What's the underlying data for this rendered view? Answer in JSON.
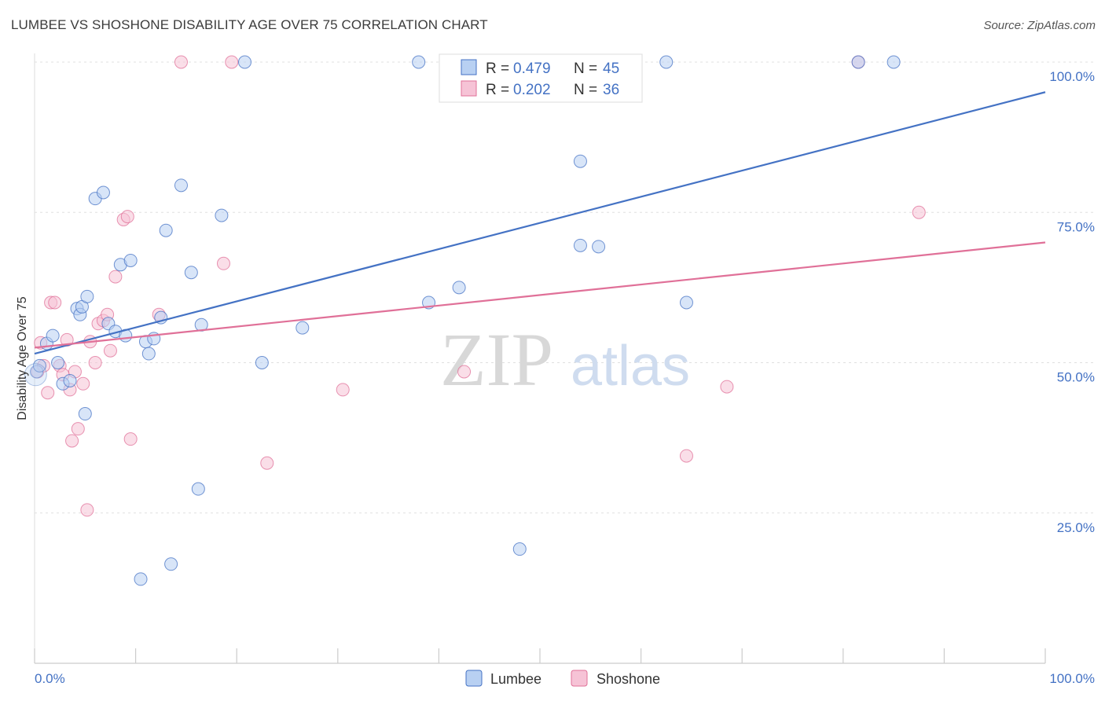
{
  "header": {
    "title": "LUMBEE VS SHOSHONE DISABILITY AGE OVER 75 CORRELATION CHART",
    "source": "Source: ZipAtlas.com"
  },
  "watermark": {
    "zip": "ZIP",
    "atlas": "atlas"
  },
  "legend": {
    "r_label": "R = ",
    "n_label": "N = ",
    "lumbee": {
      "r": "0.479",
      "n": "45"
    },
    "shoshone": {
      "r": "0.202",
      "n": "36"
    }
  },
  "chart_data": {
    "type": "scatter",
    "title": "LUMBEE VS SHOSHONE DISABILITY AGE OVER 75 CORRELATION CHART",
    "xlabel": "",
    "ylabel": "Disability Age Over 75",
    "xlim": [
      0,
      100
    ],
    "ylim": [
      0,
      100
    ],
    "x_tick_labels": [
      "0.0%",
      "100.0%"
    ],
    "y_tick_labels": [
      "25.0%",
      "50.0%",
      "75.0%",
      "100.0%"
    ],
    "y_ticks": [
      25,
      50,
      75,
      100
    ],
    "grid": true,
    "legend_position": "top-center",
    "colors": {
      "lumbee": "#4472c4",
      "lumbee_fill": "#b8d0f2",
      "shoshone": "#e07098",
      "shoshone_fill": "#f6c3d6"
    },
    "series": [
      {
        "name": "Lumbee",
        "points": [
          [
            0.2,
            48.5
          ],
          [
            0.5,
            49.5
          ],
          [
            1.2,
            53.2
          ],
          [
            1.8,
            54.5
          ],
          [
            2.3,
            50.0
          ],
          [
            2.8,
            46.5
          ],
          [
            3.5,
            47.0
          ],
          [
            4.2,
            59.0
          ],
          [
            4.5,
            58.0
          ],
          [
            5.0,
            41.5
          ],
          [
            4.7,
            59.3
          ],
          [
            5.2,
            61.0
          ],
          [
            6.0,
            77.3
          ],
          [
            6.8,
            78.3
          ],
          [
            7.3,
            56.5
          ],
          [
            8.0,
            55.2
          ],
          [
            8.5,
            66.3
          ],
          [
            9.0,
            54.5
          ],
          [
            9.5,
            67.0
          ],
          [
            10.5,
            14.0
          ],
          [
            11.0,
            53.5
          ],
          [
            11.3,
            51.5
          ],
          [
            11.8,
            54.0
          ],
          [
            12.5,
            57.5
          ],
          [
            13.0,
            72.0
          ],
          [
            13.5,
            16.5
          ],
          [
            14.5,
            79.5
          ],
          [
            15.5,
            65.0
          ],
          [
            16.2,
            29.0
          ],
          [
            16.5,
            56.3
          ],
          [
            18.5,
            74.5
          ],
          [
            20.8,
            100
          ],
          [
            22.5,
            50.0
          ],
          [
            26.5,
            55.8
          ],
          [
            38.0,
            100
          ],
          [
            39.0,
            60.0
          ],
          [
            42.0,
            62.5
          ],
          [
            48.0,
            19.0
          ],
          [
            54.0,
            83.5
          ],
          [
            54.0,
            69.5
          ],
          [
            55.8,
            69.3
          ],
          [
            62.5,
            100
          ],
          [
            64.5,
            60.0
          ],
          [
            81.5,
            100
          ],
          [
            85.0,
            100
          ]
        ],
        "trend": {
          "x": [
            0,
            100
          ],
          "y": [
            51.5,
            95.0
          ]
        }
      },
      {
        "name": "Shoshone",
        "points": [
          [
            0.3,
            48.5
          ],
          [
            0.6,
            53.3
          ],
          [
            0.9,
            49.5
          ],
          [
            1.3,
            45.0
          ],
          [
            1.6,
            60.0
          ],
          [
            2.0,
            60.0
          ],
          [
            2.5,
            49.5
          ],
          [
            2.8,
            48.0
          ],
          [
            3.2,
            53.8
          ],
          [
            3.5,
            45.5
          ],
          [
            3.7,
            37.0
          ],
          [
            4.0,
            48.5
          ],
          [
            4.3,
            39.0
          ],
          [
            4.8,
            46.5
          ],
          [
            5.2,
            25.5
          ],
          [
            5.5,
            53.5
          ],
          [
            6.0,
            50.0
          ],
          [
            6.3,
            56.5
          ],
          [
            6.8,
            57.0
          ],
          [
            7.2,
            58.0
          ],
          [
            7.5,
            52.0
          ],
          [
            8.0,
            64.3
          ],
          [
            8.8,
            73.8
          ],
          [
            9.2,
            74.3
          ],
          [
            9.5,
            37.3
          ],
          [
            12.3,
            58.0
          ],
          [
            14.5,
            100
          ],
          [
            18.7,
            66.5
          ],
          [
            19.5,
            100
          ],
          [
            23.0,
            33.3
          ],
          [
            30.5,
            45.5
          ],
          [
            42.5,
            48.5
          ],
          [
            64.5,
            34.5
          ],
          [
            68.5,
            46.0
          ],
          [
            81.5,
            100
          ],
          [
            87.5,
            75.0
          ]
        ],
        "trend": {
          "x": [
            0,
            100
          ],
          "y": [
            52.5,
            70.0
          ]
        }
      }
    ]
  },
  "bottom_legend": {
    "lumbee": "Lumbee",
    "shoshone": "Shoshone"
  }
}
